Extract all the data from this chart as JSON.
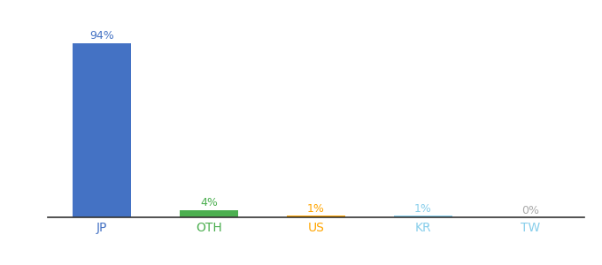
{
  "categories": [
    "JP",
    "OTH",
    "US",
    "KR",
    "TW"
  ],
  "values": [
    94,
    4,
    1,
    1,
    0
  ],
  "labels": [
    "94%",
    "4%",
    "1%",
    "1%",
    "0%"
  ],
  "bar_colors": [
    "#4472C4",
    "#4CAF50",
    "#FFA500",
    "#87CEEB",
    "#87CEEB"
  ],
  "label_colors": [
    "#4472C4",
    "#4CAF50",
    "#FFA500",
    "#87CEEB",
    "#aaaaaa"
  ],
  "tick_color": "#4472C4",
  "background_color": "#ffffff",
  "ylim": [
    0,
    100
  ],
  "bar_width": 0.55,
  "figsize": [
    6.8,
    3.0
  ],
  "dpi": 100
}
